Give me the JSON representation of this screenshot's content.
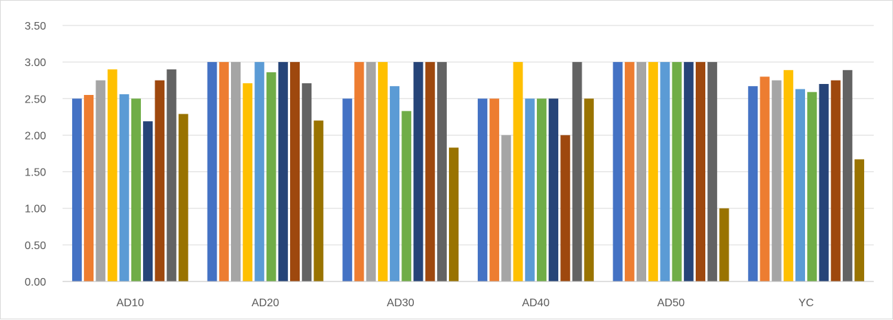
{
  "chart_data": {
    "type": "bar",
    "categories": [
      "AD10",
      "AD20",
      "AD30",
      "AD40",
      "AD50",
      "YC"
    ],
    "y_ticks": [
      "0.00",
      "0.50",
      "1.00",
      "1.50",
      "2.00",
      "2.50",
      "3.00",
      "3.50"
    ],
    "ylim": [
      0,
      3.5
    ],
    "grid": true,
    "legend": "none",
    "series": [
      {
        "color": "#4472C4",
        "values": [
          2.5,
          3.0,
          2.5,
          2.5,
          3.0,
          2.67
        ]
      },
      {
        "color": "#ED7D31",
        "values": [
          2.55,
          3.0,
          3.0,
          2.5,
          3.0,
          2.8
        ]
      },
      {
        "color": "#A5A5A5",
        "values": [
          2.75,
          3.0,
          3.0,
          2.0,
          3.0,
          2.75
        ]
      },
      {
        "color": "#FFC000",
        "values": [
          2.9,
          2.71,
          3.0,
          3.0,
          3.0,
          2.89
        ]
      },
      {
        "color": "#5B9BD5",
        "values": [
          2.56,
          3.0,
          2.67,
          2.5,
          3.0,
          2.63
        ]
      },
      {
        "color": "#70AD47",
        "values": [
          2.5,
          2.86,
          2.33,
          2.5,
          3.0,
          2.59
        ]
      },
      {
        "color": "#264478",
        "values": [
          2.19,
          3.0,
          3.0,
          2.5,
          3.0,
          2.7
        ]
      },
      {
        "color": "#9E480E",
        "values": [
          2.75,
          3.0,
          3.0,
          2.0,
          3.0,
          2.75
        ]
      },
      {
        "color": "#636363",
        "values": [
          2.9,
          2.71,
          3.0,
          3.0,
          3.0,
          2.89
        ]
      },
      {
        "color": "#997300",
        "values": [
          2.29,
          2.2,
          1.83,
          2.5,
          1.0,
          1.67
        ]
      }
    ]
  }
}
